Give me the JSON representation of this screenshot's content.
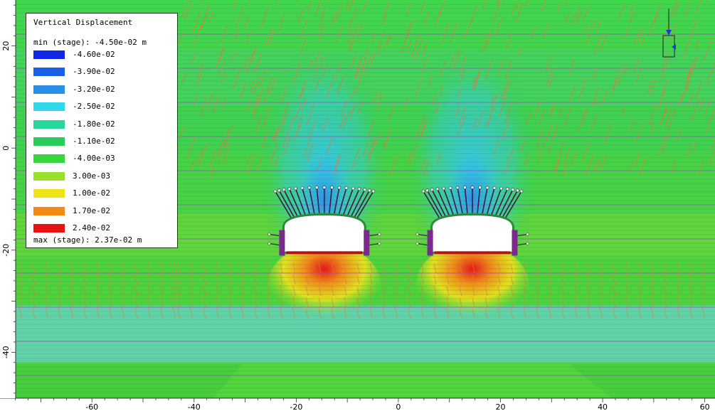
{
  "chart_data": {
    "type": "heatmap",
    "title": "Vertical Displacement",
    "min_label": "min (stage): -4.50e-02 m",
    "max_label": "max (stage): 2.37e-02 m",
    "legend": [
      {
        "value": "-4.60e-02",
        "color": "#1028e6"
      },
      {
        "value": "-3.90e-02",
        "color": "#1a5fe8"
      },
      {
        "value": "-3.20e-02",
        "color": "#2a8fe8"
      },
      {
        "value": "-2.50e-02",
        "color": "#30d8ec"
      },
      {
        "value": "-1.80e-02",
        "color": "#28d89a"
      },
      {
        "value": "-1.10e-02",
        "color": "#2ccc5a"
      },
      {
        "value": "-4.00e-03",
        "color": "#38d63a"
      },
      {
        "value": "3.00e-03",
        "color": "#9ae02a"
      },
      {
        "value": "1.00e-02",
        "color": "#f0e418"
      },
      {
        "value": "1.70e-02",
        "color": "#f28a14"
      },
      {
        "value": "2.40e-02",
        "color": "#e81414"
      }
    ],
    "x_ticks": [
      -60,
      -40,
      -20,
      0,
      20,
      40,
      60
    ],
    "y_ticks": [
      20,
      0,
      -20,
      -40
    ],
    "xlim": [
      -78,
      62
    ],
    "ylim": [
      -49,
      29
    ],
    "tunnels": [
      {
        "name": "left tunnel",
        "center_x": -14.5,
        "crown_y": -13,
        "invert_y": -20.5,
        "half_width": 8
      },
      {
        "name": "right tunnel",
        "center_x": 14.5,
        "crown_y": -13,
        "invert_y": -20.5,
        "half_width": 8
      }
    ],
    "grid": false
  }
}
